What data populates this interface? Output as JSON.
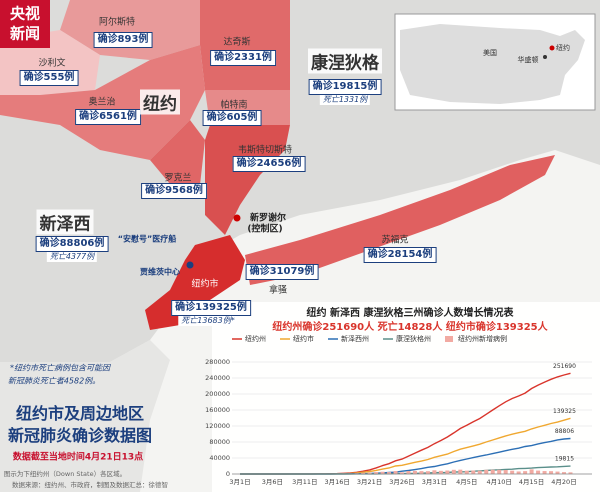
{
  "logo": {
    "line1": "央视",
    "line2": "新闻"
  },
  "map": {
    "states": {
      "ny": "纽约",
      "nj": {
        "name": "新泽西",
        "cases": "确诊88806例",
        "deaths": "死亡4377例"
      },
      "ct": {
        "name": "康涅狄格",
        "cases": "确诊19815例",
        "deaths": "死亡1331例"
      }
    },
    "counties": [
      {
        "name": "阿尔斯特",
        "cases": "确诊893例"
      },
      {
        "name": "达奇斯",
        "cases": "确诊2331例"
      },
      {
        "name": "沙利文",
        "cases": "确诊555例"
      },
      {
        "name": "奥兰治",
        "cases": "确诊6561例"
      },
      {
        "name": "帕特南",
        "cases": "确诊605例"
      },
      {
        "name": "韦斯特切斯特",
        "cases": "确诊24656例"
      },
      {
        "name": "罗克兰",
        "cases": "确诊9568例"
      },
      {
        "name": "苏福克",
        "cases": "确诊28154例"
      },
      {
        "name": "拿骚",
        "cases": "确诊31079例"
      },
      {
        "name": "纽约市",
        "cases": "确诊139325例",
        "deaths": "死亡13683例*"
      }
    ],
    "places": {
      "new_rochelle": "新罗谢尔",
      "zone": "(控制区)",
      "ship": "“安慰号”医疗船",
      "javits": "贾维茨中心"
    },
    "inset": {
      "country": "美国",
      "ny": "纽约",
      "dc": "华盛顿"
    }
  },
  "note": [
    "*纽约市死亡病例包含可能因",
    "新冠肺炎死亡者4582例。"
  ],
  "title": [
    "纽约市及周边地区",
    "新冠肺炎确诊数据图"
  ],
  "subtitle": "数据截至当地时间4月21日13点",
  "source": [
    "图示为下纽约州（Down State）各区域。",
    "数据来源：纽约州、市政府，制图及数据汇总：徐德智"
  ],
  "chart_data": {
    "type": "line",
    "title": "纽约 新泽西 康涅狄格三州确诊人数增长情况表",
    "subtitle": "纽约州确诊251690人 死亡14828人 纽约市确诊139325人",
    "categories": [
      "3月1日",
      null,
      null,
      null,
      null,
      "3月6日",
      null,
      null,
      null,
      null,
      "3月11日",
      null,
      null,
      null,
      null,
      "3月16日",
      null,
      null,
      null,
      null,
      "3月21日",
      null,
      null,
      null,
      null,
      "3月26日",
      null,
      null,
      null,
      null,
      "3月31日",
      null,
      null,
      null,
      null,
      "4月5日",
      null,
      null,
      null,
      null,
      "4月10日",
      null,
      null,
      null,
      null,
      "4月15日",
      null,
      null,
      null,
      null,
      "4月20日",
      null
    ],
    "ylim": [
      0,
      280000
    ],
    "yticks": [
      0,
      40000,
      80000,
      120000,
      160000,
      200000,
      240000,
      280000
    ],
    "grid": true,
    "series": [
      {
        "name": "纽约州",
        "color": "#d9352c",
        "values": [
          1,
          1,
          2,
          11,
          22,
          44,
          89,
          106,
          142,
          173,
          217,
          326,
          421,
          610,
          732,
          950,
          1700,
          2382,
          4152,
          7102,
          10356,
          15168,
          20875,
          25665,
          33066,
          37258,
          44635,
          52318,
          59513,
          66497,
          75795,
          83712,
          92381,
          102863,
          113704,
          122031,
          130689,
          138863,
          149316,
          159937,
          170512,
          180458,
          188694,
          195031,
          202208,
          213779,
          222284,
          229642,
          236732,
          242786,
          247512,
          251690
        ]
      },
      {
        "name": "纽约市",
        "color": "#f0a830",
        "values": [
          0,
          0,
          1,
          2,
          3,
          4,
          11,
          13,
          16,
          36,
          52,
          95,
          154,
          269,
          329,
          463,
          814,
          1339,
          2469,
          4408,
          6211,
          9045,
          12305,
          14904,
          20011,
          21873,
          25398,
          29158,
          32308,
          36221,
          41771,
          45707,
          49707,
          56289,
          61888,
          65954,
          70176,
          74601,
          79937,
          84950,
          90215,
          95235,
          99399,
          103173,
          106796,
          112717,
          117565,
          121759,
          126368,
          129812,
          134436,
          139325
        ]
      },
      {
        "name": "新泽西州",
        "color": "#2c6fb5",
        "values": [
          0,
          0,
          0,
          0,
          1,
          1,
          2,
          4,
          6,
          15,
          23,
          29,
          50,
          69,
          98,
          178,
          267,
          427,
          742,
          890,
          1327,
          1914,
          2844,
          3675,
          4402,
          6876,
          8825,
          11124,
          13386,
          16636,
          18696,
          22255,
          25590,
          29895,
          34124,
          37505,
          41090,
          44416,
          47437,
          51027,
          54588,
          58151,
          61850,
          64584,
          68824,
          71030,
          75317,
          78467,
          81420,
          85301,
          87500,
          88806
        ]
      },
      {
        "name": "康涅狄格州",
        "color": "#5a8f8a",
        "values": [
          0,
          0,
          0,
          0,
          0,
          0,
          0,
          0,
          0,
          0,
          3,
          5,
          11,
          20,
          24,
          41,
          68,
          96,
          159,
          194,
          223,
          327,
          415,
          618,
          875,
          1012,
          1291,
          1524,
          1993,
          2571,
          3128,
          3557,
          3824,
          4914,
          5276,
          5675,
          6906,
          7781,
          8781,
          9784,
          10538,
          11510,
          12035,
          13381,
          13989,
          14755,
          15884,
          16809,
          17550,
          17962,
          19000,
          19815
        ]
      },
      {
        "name": "纽约州新增病例",
        "type": "bar",
        "color": "#f2aaa2",
        "values": [
          0,
          0,
          1,
          9,
          11,
          22,
          45,
          17,
          36,
          31,
          44,
          109,
          95,
          189,
          122,
          218,
          750,
          682,
          1770,
          2950,
          3254,
          4812,
          5707,
          4790,
          7401,
          4192,
          7377,
          7683,
          7195,
          6984,
          9298,
          7917,
          8669,
          10482,
          10841,
          8327,
          8658,
          8174,
          10453,
          10621,
          10575,
          9946,
          8236,
          6337,
          7177,
          11571,
          8505,
          7358,
          7090,
          6054,
          4726,
          4178
        ]
      }
    ]
  }
}
